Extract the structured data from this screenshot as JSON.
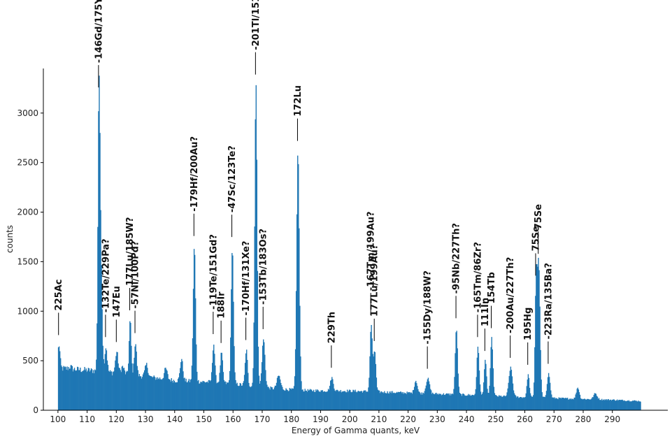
{
  "chart_data": {
    "type": "bar",
    "title": "",
    "xlabel": "Energy of Gamma quants, keV",
    "ylabel": "counts",
    "xlim": [
      95,
      309
    ],
    "ylim": [
      0,
      3450
    ],
    "x_range": [
      100,
      299.5
    ],
    "bin_width": 0.25,
    "x_ticks": [
      100,
      110,
      120,
      130,
      140,
      150,
      160,
      170,
      180,
      190,
      200,
      210,
      220,
      230,
      240,
      250,
      260,
      270,
      280,
      290
    ],
    "y_ticks": [
      0,
      500,
      1000,
      1500,
      2000,
      2500,
      3000
    ],
    "color": "#1f77b4",
    "grid": false,
    "baseline": [
      [
        100,
        425
      ],
      [
        112,
        400
      ],
      [
        125,
        360
      ],
      [
        140,
        300
      ],
      [
        155,
        280
      ],
      [
        165,
        250
      ],
      [
        175,
        215
      ],
      [
        185,
        200
      ],
      [
        200,
        195
      ],
      [
        215,
        180
      ],
      [
        230,
        165
      ],
      [
        245,
        150
      ],
      [
        260,
        130
      ],
      [
        275,
        118
      ],
      [
        290,
        105
      ],
      [
        300,
        92
      ]
    ],
    "peaks": [
      {
        "x": 100.2,
        "y": 660,
        "w": 0.35
      },
      {
        "x": 104.0,
        "y": 440,
        "w": 0.5
      },
      {
        "x": 113.9,
        "y": 3160,
        "w": 0.35
      },
      {
        "x": 114.6,
        "y": 1420,
        "w": 0.4
      },
      {
        "x": 116.3,
        "y": 640,
        "w": 0.4
      },
      {
        "x": 120.0,
        "y": 590,
        "w": 0.45
      },
      {
        "x": 122.0,
        "y": 440,
        "w": 0.5
      },
      {
        "x": 124.6,
        "y": 910,
        "w": 0.35
      },
      {
        "x": 126.4,
        "y": 680,
        "w": 0.4
      },
      {
        "x": 130.2,
        "y": 460,
        "w": 0.5
      },
      {
        "x": 136.8,
        "y": 420,
        "w": 0.5
      },
      {
        "x": 142.2,
        "y": 520,
        "w": 0.45
      },
      {
        "x": 146.6,
        "y": 1660,
        "w": 0.4
      },
      {
        "x": 153.2,
        "y": 670,
        "w": 0.4
      },
      {
        "x": 155.9,
        "y": 580,
        "w": 0.4
      },
      {
        "x": 159.6,
        "y": 1650,
        "w": 0.4
      },
      {
        "x": 164.4,
        "y": 610,
        "w": 0.4
      },
      {
        "x": 167.7,
        "y": 3290,
        "w": 0.4
      },
      {
        "x": 170.3,
        "y": 720,
        "w": 0.5
      },
      {
        "x": 175.5,
        "y": 350,
        "w": 0.6
      },
      {
        "x": 182.1,
        "y": 2620,
        "w": 0.45
      },
      {
        "x": 193.7,
        "y": 330,
        "w": 0.5
      },
      {
        "x": 207.2,
        "y": 860,
        "w": 0.4
      },
      {
        "x": 208.4,
        "y": 600,
        "w": 0.4
      },
      {
        "x": 222.5,
        "y": 300,
        "w": 0.5
      },
      {
        "x": 226.6,
        "y": 320,
        "w": 0.6
      },
      {
        "x": 236.4,
        "y": 830,
        "w": 0.4
      },
      {
        "x": 243.8,
        "y": 640,
        "w": 0.4
      },
      {
        "x": 246.3,
        "y": 500,
        "w": 0.4
      },
      {
        "x": 248.5,
        "y": 730,
        "w": 0.4
      },
      {
        "x": 255.0,
        "y": 430,
        "w": 0.6
      },
      {
        "x": 261.0,
        "y": 360,
        "w": 0.4
      },
      {
        "x": 264.6,
        "y": 1480,
        "w": 0.45
      },
      {
        "x": 263.7,
        "y": 1260,
        "w": 0.35
      },
      {
        "x": 268.0,
        "y": 370,
        "w": 0.5
      },
      {
        "x": 278.0,
        "y": 230,
        "w": 0.5
      },
      {
        "x": 284.0,
        "y": 170,
        "w": 0.6
      }
    ],
    "annotations": [
      {
        "text": "225Ac",
        "x": 100.2,
        "y": 660
      },
      {
        "text": "-146Gd/175Yb?",
        "x": 113.9,
        "y": 3160
      },
      {
        "text": "-132Te/229Pa?",
        "x": 116.3,
        "y": 640
      },
      {
        "text": "147Eu",
        "x": 120.0,
        "y": 590
      },
      {
        "text": "177Lu/185W?",
        "x": 124.6,
        "y": 910
      },
      {
        "text": "-57Ni/100Pd?",
        "x": 126.4,
        "y": 680
      },
      {
        "text": "-179Hf/200Au?",
        "x": 146.6,
        "y": 1660
      },
      {
        "text": "-119Te/151Gd?",
        "x": 153.2,
        "y": 670
      },
      {
        "text": "188Ir",
        "x": 155.9,
        "y": 580
      },
      {
        "text": "-47Sc/123Te?",
        "x": 159.6,
        "y": 1650
      },
      {
        "text": "-170Hf/131Xe?",
        "x": 164.4,
        "y": 610
      },
      {
        "text": "-201Tl/151Pm?",
        "x": 167.7,
        "y": 3290
      },
      {
        "text": "-153Tb/183Os?",
        "x": 170.3,
        "y": 720
      },
      {
        "text": "172Lu",
        "x": 182.1,
        "y": 2620
      },
      {
        "text": "229Th",
        "x": 193.7,
        "y": 330
      },
      {
        "text": "-167Tm/199Au?",
        "x": 207.2,
        "y": 860
      },
      {
        "text": "177Lu/199Au?",
        "x": 208.4,
        "y": 600
      },
      {
        "text": "-155Dy/188W?",
        "x": 226.6,
        "y": 320
      },
      {
        "text": "-95Nb/227Th?",
        "x": 236.4,
        "y": 830
      },
      {
        "text": "-165Tm/86Zr?",
        "x": 243.8,
        "y": 640
      },
      {
        "text": "111In",
        "x": 246.3,
        "y": 500
      },
      {
        "text": "154Tb",
        "x": 248.5,
        "y": 730
      },
      {
        "text": "-200Au/227Th?",
        "x": 255.0,
        "y": 430
      },
      {
        "text": "195Hg",
        "x": 261.0,
        "y": 360
      },
      {
        "text": "75Se",
        "x": 263.7,
        "y": 1260
      },
      {
        "text": "75Se",
        "x": 264.6,
        "y": 1480
      },
      {
        "text": "-223Ra/135Ba?",
        "x": 268.0,
        "y": 370
      }
    ]
  }
}
